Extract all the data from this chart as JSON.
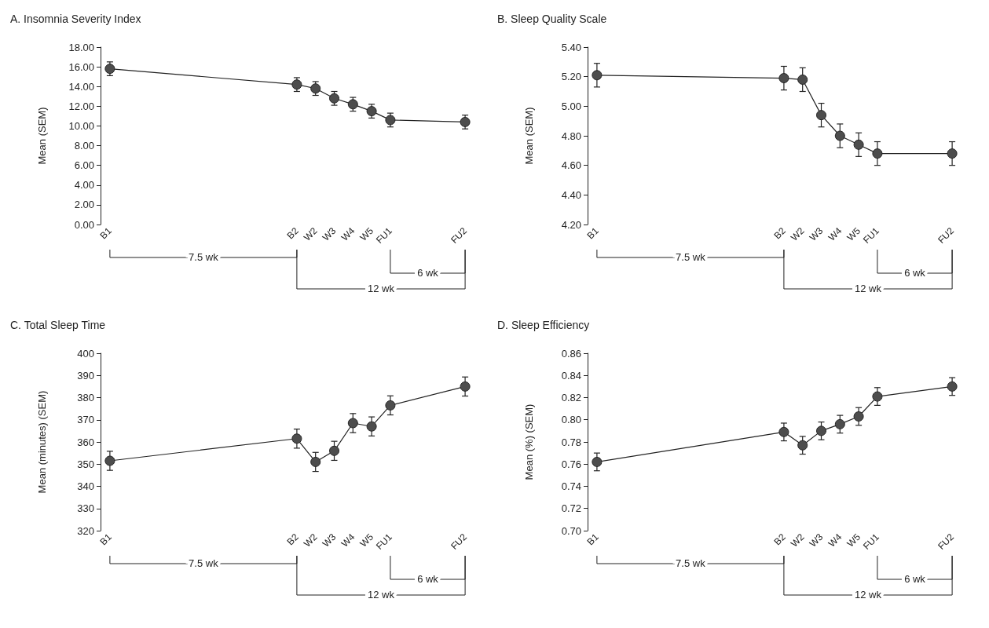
{
  "chart_data": [
    {
      "type": "line",
      "title": "A. Insomnia Severity Index",
      "ylabel": "Mean (SEM)",
      "categories": [
        "B1",
        null,
        null,
        null,
        null,
        null,
        null,
        null,
        null,
        null,
        "B2",
        "W2",
        "W3",
        "W4",
        "W5",
        "FU1",
        null,
        null,
        null,
        "FU2"
      ],
      "color": "#4d4d4d",
      "marker": "circle",
      "values": [
        15.8,
        null,
        null,
        null,
        null,
        null,
        null,
        null,
        null,
        null,
        14.2,
        13.8,
        12.8,
        12.2,
        11.5,
        10.6,
        null,
        null,
        null,
        10.4
      ],
      "errors": [
        0.7,
        null,
        null,
        null,
        null,
        null,
        null,
        null,
        null,
        null,
        0.7,
        0.7,
        0.7,
        0.7,
        0.7,
        0.7,
        null,
        null,
        null,
        0.7
      ],
      "ylim": [
        0,
        18
      ],
      "yticks": [
        {
          "value": 0,
          "label": "0.00"
        },
        {
          "value": 2,
          "label": "2.00"
        },
        {
          "value": 4,
          "label": "4.00"
        },
        {
          "value": 6,
          "label": "6.00"
        },
        {
          "value": 8,
          "label": "8.00"
        },
        {
          "value": 10,
          "label": "10.00"
        },
        {
          "value": 12,
          "label": "12.00"
        },
        {
          "value": 14,
          "label": "14.00"
        },
        {
          "value": 16,
          "label": "16.00"
        },
        {
          "value": 18,
          "label": "18.00"
        }
      ],
      "annotations": [
        "7.5 wk",
        "6 wk",
        "12 wk"
      ]
    },
    {
      "type": "line",
      "title": "B. Sleep Quality Scale",
      "ylabel": "Mean (SEM)",
      "categories": [
        "B1",
        null,
        null,
        null,
        null,
        null,
        null,
        null,
        null,
        null,
        "B2",
        "W2",
        "W3",
        "W4",
        "W5",
        "FU1",
        null,
        null,
        null,
        "FU2"
      ],
      "color": "#4d4d4d",
      "marker": "circle",
      "values": [
        5.21,
        null,
        null,
        null,
        null,
        null,
        null,
        null,
        null,
        null,
        5.19,
        5.18,
        4.94,
        4.8,
        4.74,
        4.68,
        null,
        null,
        null,
        4.68
      ],
      "errors": [
        0.08,
        null,
        null,
        null,
        null,
        null,
        null,
        null,
        null,
        null,
        0.08,
        0.08,
        0.08,
        0.08,
        0.08,
        0.08,
        null,
        null,
        null,
        0.08
      ],
      "ylim": [
        4.2,
        5.4
      ],
      "yticks": [
        {
          "value": 4.2,
          "label": "4.20"
        },
        {
          "value": 4.4,
          "label": "4.40"
        },
        {
          "value": 4.6,
          "label": "4.60"
        },
        {
          "value": 4.8,
          "label": "4.80"
        },
        {
          "value": 5,
          "label": "5.00"
        },
        {
          "value": 5.2,
          "label": "5.20"
        },
        {
          "value": 5.4,
          "label": "5.40"
        }
      ],
      "annotations": [
        "7.5 wk",
        "6 wk",
        "12 wk"
      ]
    },
    {
      "type": "line",
      "title": "C. Total Sleep Time",
      "ylabel": "Mean (minutes) (SEM)",
      "categories": [
        "B1",
        null,
        null,
        null,
        null,
        null,
        null,
        null,
        null,
        null,
        "B2",
        "W2",
        "W3",
        "W4",
        "W5",
        "FU1",
        null,
        null,
        null,
        "FU2"
      ],
      "color": "#4d4d4d",
      "marker": "circle",
      "values": [
        351.5,
        null,
        null,
        null,
        null,
        null,
        null,
        null,
        null,
        null,
        361.5,
        351,
        356,
        368.5,
        367,
        376.5,
        null,
        null,
        null,
        385
      ],
      "errors": [
        4.3,
        null,
        null,
        null,
        null,
        null,
        null,
        null,
        null,
        null,
        4.3,
        4.3,
        4.3,
        4.3,
        4.3,
        4.3,
        null,
        null,
        null,
        4.3
      ],
      "ylim": [
        320,
        400
      ],
      "yticks": [
        320,
        330,
        340,
        350,
        360,
        370,
        380,
        390,
        400
      ],
      "annotations": [
        "7.5 wk",
        "6 wk",
        "12 wk"
      ]
    },
    {
      "type": "line",
      "title": "D. Sleep Efficiency",
      "ylabel": "Mean (%) (SEM)",
      "categories": [
        "B1",
        null,
        null,
        null,
        null,
        null,
        null,
        null,
        null,
        null,
        "B2",
        "W2",
        "W3",
        "W4",
        "W5",
        "FU1",
        null,
        null,
        null,
        "FU2"
      ],
      "color": "#4d4d4d",
      "marker": "circle",
      "values": [
        0.762,
        null,
        null,
        null,
        null,
        null,
        null,
        null,
        null,
        null,
        0.789,
        0.777,
        0.79,
        0.796,
        0.803,
        0.821,
        null,
        null,
        null,
        0.83
      ],
      "errors": [
        0.008,
        null,
        null,
        null,
        null,
        null,
        null,
        null,
        null,
        null,
        0.008,
        0.008,
        0.008,
        0.008,
        0.008,
        0.008,
        null,
        null,
        null,
        0.008
      ],
      "ylim": [
        0.7,
        0.86
      ],
      "yticks": [
        {
          "value": 0.7,
          "label": "0.70"
        },
        {
          "value": 0.72,
          "label": "0.72"
        },
        {
          "value": 0.74,
          "label": "0.74"
        },
        {
          "value": 0.76,
          "label": "0.76"
        },
        {
          "value": 0.78,
          "label": "0.78"
        },
        {
          "value": 0.8,
          "label": "0.80"
        },
        {
          "value": 0.82,
          "label": "0.82"
        },
        {
          "value": 0.84,
          "label": "0.84"
        },
        {
          "value": 0.86,
          "label": "0.86"
        }
      ],
      "annotations": [
        "7.5 wk",
        "6 wk",
        "12 wk"
      ]
    }
  ]
}
